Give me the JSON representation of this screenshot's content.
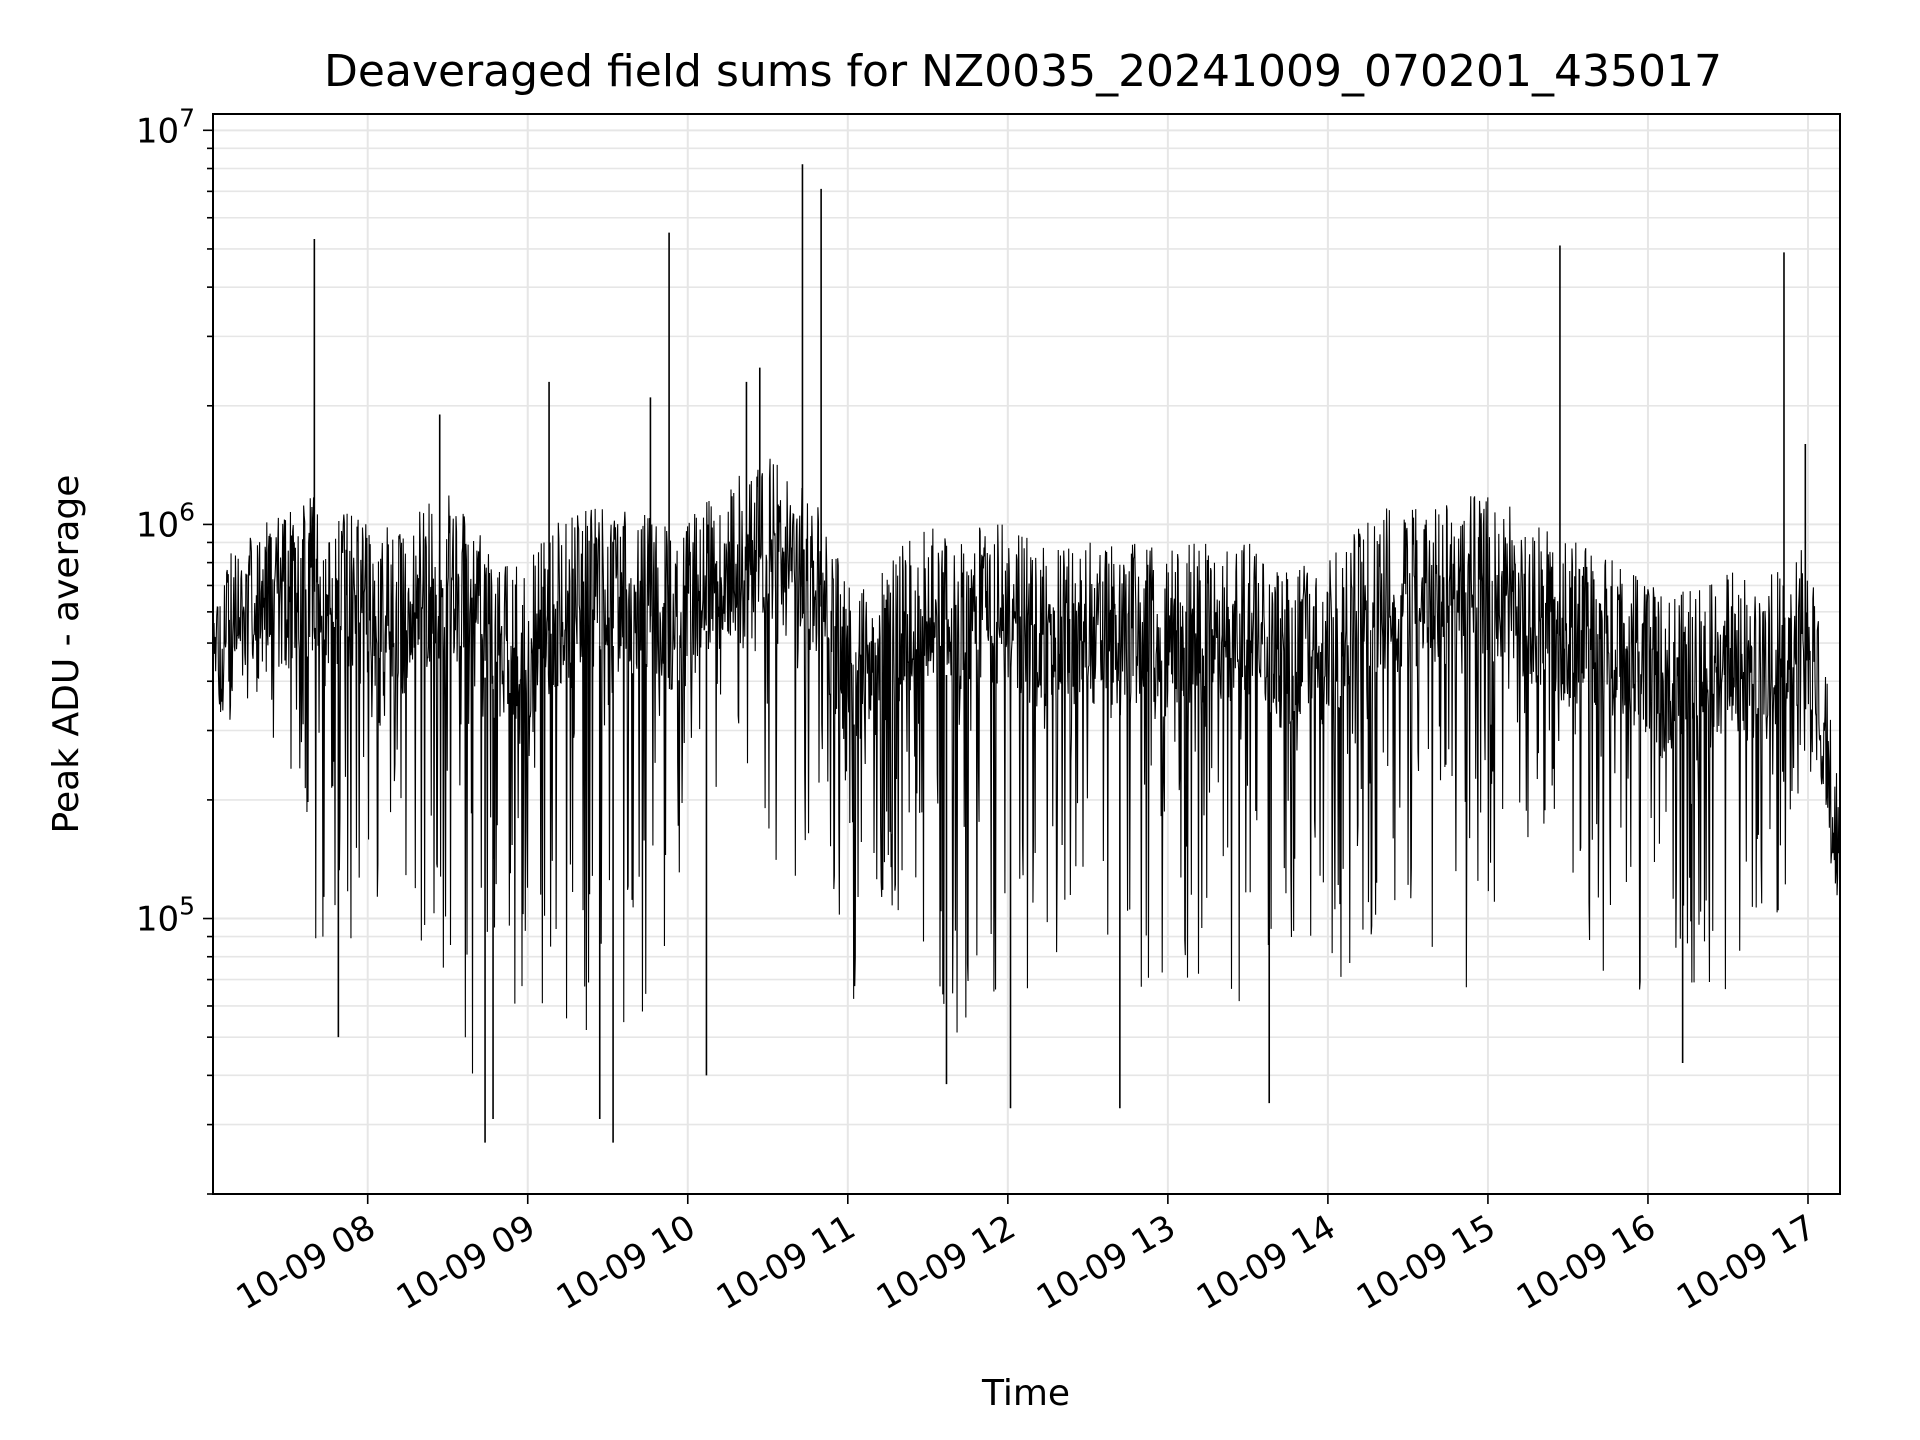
{
  "chart_data": {
    "type": "line",
    "title": "Deaveraged field sums for NZ0035_20241009_070201_435017",
    "xlabel": "Time",
    "ylabel": "Peak ADU - average",
    "yscale": "log",
    "ylim": [
      20000,
      11000000
    ],
    "xlim": [
      "2024-10-09 07:02",
      "2024-10-09 17:12"
    ],
    "grid": true,
    "x_ticks": [
      "10-09 08",
      "10-09 09",
      "10-09 10",
      "10-09 11",
      "10-09 12",
      "10-09 13",
      "10-09 14",
      "10-09 15",
      "10-09 16",
      "10-09 17"
    ],
    "y_ticks": [
      {
        "base": "10",
        "exp": "5",
        "value": 100000
      },
      {
        "base": "10",
        "exp": "6",
        "value": 1000000
      },
      {
        "base": "10",
        "exp": "7",
        "value": 10000000
      }
    ],
    "series": [
      {
        "color": "#000000",
        "x": [
          "2024-10-09 07:02",
          "2024-10-09 07:10",
          "2024-10-09 07:20",
          "2024-10-09 07:30",
          "2024-10-09 07:40",
          "2024-10-09 07:50",
          "2024-10-09 08:00",
          "2024-10-09 08:10",
          "2024-10-09 08:20",
          "2024-10-09 08:30",
          "2024-10-09 08:40",
          "2024-10-09 08:50",
          "2024-10-09 09:00",
          "2024-10-09 09:10",
          "2024-10-09 09:20",
          "2024-10-09 09:30",
          "2024-10-09 09:40",
          "2024-10-09 09:50",
          "2024-10-09 10:00",
          "2024-10-09 10:10",
          "2024-10-09 10:20",
          "2024-10-09 10:30",
          "2024-10-09 10:40",
          "2024-10-09 10:50",
          "2024-10-09 11:00",
          "2024-10-09 11:10",
          "2024-10-09 11:20",
          "2024-10-09 11:30",
          "2024-10-09 11:40",
          "2024-10-09 11:50",
          "2024-10-09 12:00",
          "2024-10-09 12:10",
          "2024-10-09 12:20",
          "2024-10-09 12:30",
          "2024-10-09 12:40",
          "2024-10-09 12:50",
          "2024-10-09 13:00",
          "2024-10-09 13:10",
          "2024-10-09 13:20",
          "2024-10-09 13:30",
          "2024-10-09 13:40",
          "2024-10-09 13:50",
          "2024-10-09 14:00",
          "2024-10-09 14:10",
          "2024-10-09 14:20",
          "2024-10-09 14:30",
          "2024-10-09 14:40",
          "2024-10-09 14:50",
          "2024-10-09 15:00",
          "2024-10-09 15:10",
          "2024-10-09 15:20",
          "2024-10-09 15:30",
          "2024-10-09 15:40",
          "2024-10-09 15:50",
          "2024-10-09 16:00",
          "2024-10-09 16:10",
          "2024-10-09 16:20",
          "2024-10-09 16:30",
          "2024-10-09 16:40",
          "2024-10-09 16:50",
          "2024-10-09 17:00",
          "2024-10-09 17:06",
          "2024-10-09 17:12"
        ],
        "low": [
          450000,
          600000,
          550000,
          130000,
          70000,
          90000,
          80000,
          200000,
          70000,
          40000,
          30000,
          50000,
          60000,
          60000,
          40000,
          60000,
          50000,
          60000,
          150000,
          200000,
          250000,
          150000,
          80000,
          200000,
          60000,
          70000,
          100000,
          60000,
          50000,
          60000,
          70000,
          50000,
          80000,
          70000,
          60000,
          50000,
          70000,
          60000,
          70000,
          50000,
          80000,
          90000,
          70000,
          60000,
          100000,
          80000,
          70000,
          60000,
          100000,
          100000,
          150000,
          150000,
          60000,
          70000,
          60000,
          70000,
          60000,
          60000,
          70000,
          100000,
          200000,
          200000,
          100000
        ],
        "high": [
          600000,
          900000,
          1000000,
          1100000,
          1200000,
          1100000,
          1000000,
          1000000,
          1100000,
          1200000,
          1000000,
          800000,
          800000,
          1000000,
          1100000,
          1100000,
          1100000,
          1000000,
          1000000,
          1300000,
          1400000,
          1500000,
          1300000,
          1100000,
          700000,
          700000,
          900000,
          1000000,
          900000,
          1000000,
          1000000,
          900000,
          900000,
          900000,
          900000,
          900000,
          900000,
          900000,
          900000,
          900000,
          800000,
          800000,
          800000,
          1000000,
          1100000,
          1100000,
          1100000,
          1200000,
          1200000,
          1100000,
          1000000,
          900000,
          900000,
          800000,
          700000,
          700000,
          700000,
          800000,
          700000,
          800000,
          900000,
          500000,
          200000
        ],
        "spikes": [
          {
            "x": "2024-10-09 07:40",
            "y": 5300000
          },
          {
            "x": "2024-10-09 08:27",
            "y": 1900000
          },
          {
            "x": "2024-10-09 09:08",
            "y": 2300000
          },
          {
            "x": "2024-10-09 09:46",
            "y": 2100000
          },
          {
            "x": "2024-10-09 09:53",
            "y": 5500000
          },
          {
            "x": "2024-10-09 10:22",
            "y": 2300000
          },
          {
            "x": "2024-10-09 10:27",
            "y": 2500000
          },
          {
            "x": "2024-10-09 10:43",
            "y": 8200000
          },
          {
            "x": "2024-10-09 10:50",
            "y": 7100000
          },
          {
            "x": "2024-10-09 15:27",
            "y": 5100000
          },
          {
            "x": "2024-10-09 16:51",
            "y": 4900000
          },
          {
            "x": "2024-10-09 16:59",
            "y": 1600000
          }
        ],
        "dips": [
          {
            "x": "2024-10-09 07:49",
            "y": 50000
          },
          {
            "x": "2024-10-09 08:44",
            "y": 27000
          },
          {
            "x": "2024-10-09 08:47",
            "y": 31000
          },
          {
            "x": "2024-10-09 09:27",
            "y": 31000
          },
          {
            "x": "2024-10-09 09:32",
            "y": 27000
          },
          {
            "x": "2024-10-09 10:07",
            "y": 40000
          },
          {
            "x": "2024-10-09 11:37",
            "y": 38000
          },
          {
            "x": "2024-10-09 12:01",
            "y": 33000
          },
          {
            "x": "2024-10-09 12:42",
            "y": 33000
          },
          {
            "x": "2024-10-09 13:38",
            "y": 34000
          },
          {
            "x": "2024-10-09 16:13",
            "y": 43000
          }
        ]
      }
    ]
  }
}
